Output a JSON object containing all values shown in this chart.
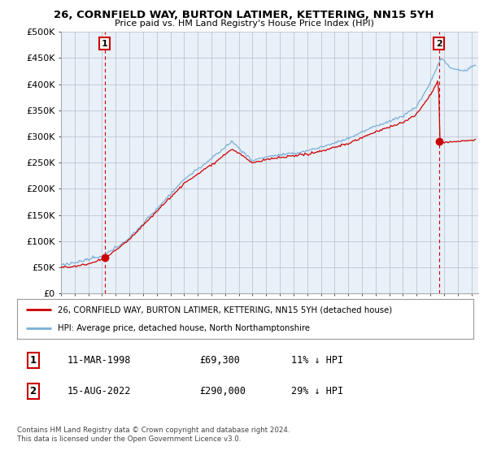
{
  "title": "26, CORNFIELD WAY, BURTON LATIMER, KETTERING, NN15 5YH",
  "subtitle": "Price paid vs. HM Land Registry's House Price Index (HPI)",
  "ylim": [
    0,
    500000
  ],
  "yticks": [
    0,
    50000,
    100000,
    150000,
    200000,
    250000,
    300000,
    350000,
    400000,
    450000,
    500000
  ],
  "xlim_start": 1995.0,
  "xlim_end": 2025.5,
  "hpi_color": "#7bafd4",
  "price_color": "#cc0000",
  "bg_color": "#e8f0f8",
  "grid_color": "#bbbbcc",
  "marker1_x": 1998.19,
  "marker1_y": 69300,
  "marker2_x": 2022.62,
  "marker2_y": 290000,
  "legend_line1": "26, CORNFIELD WAY, BURTON LATIMER, KETTERING, NN15 5YH (detached house)",
  "legend_line2": "HPI: Average price, detached house, North Northamptonshire",
  "footnote": "Contains HM Land Registry data © Crown copyright and database right 2024.\nThis data is licensed under the Open Government Licence v3.0.",
  "table_row1": [
    "1",
    "11-MAR-1998",
    "£69,300",
    "11% ↓ HPI"
  ],
  "table_row2": [
    "2",
    "15-AUG-2022",
    "£290,000",
    "29% ↓ HPI"
  ]
}
